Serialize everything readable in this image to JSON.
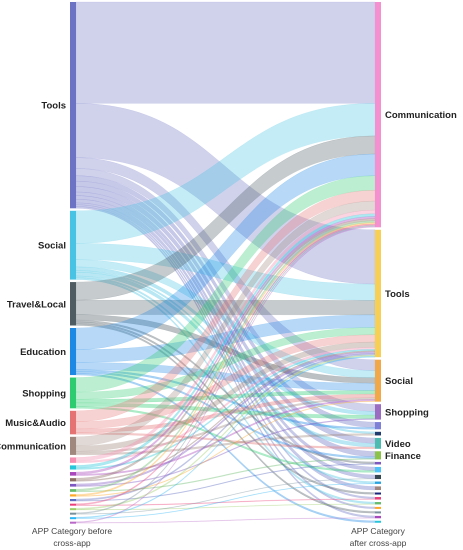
{
  "diagram": {
    "type": "sankey",
    "left_caption_line1": "APP Category before",
    "left_caption_line2": "cross-app",
    "right_caption_line1": "APP Category",
    "right_caption_line2": "after cross-app"
  },
  "left_nodes": [
    {
      "id": "L0",
      "label": "Tools",
      "color": "#6c72c4"
    },
    {
      "id": "L1",
      "label": "Social",
      "color": "#48c3e3"
    },
    {
      "id": "L2",
      "label": "Travel&Local",
      "color": "#4f5d63"
    },
    {
      "id": "L3",
      "label": "Education",
      "color": "#1e88e5"
    },
    {
      "id": "L4",
      "label": "Shopping",
      "color": "#2ecc71"
    },
    {
      "id": "L5",
      "label": "Music&Audio",
      "color": "#e57373"
    },
    {
      "id": "L6",
      "label": "Communication",
      "color": "#a1887f"
    },
    {
      "id": "L7",
      "label": "",
      "color": "#f48fb1"
    },
    {
      "id": "L8",
      "label": "",
      "color": "#26c6da"
    },
    {
      "id": "L9",
      "label": "",
      "color": "#ab47bc"
    },
    {
      "id": "L10",
      "label": "",
      "color": "#8d6e63"
    },
    {
      "id": "L11",
      "label": "",
      "color": "#7e57c2"
    },
    {
      "id": "L12",
      "label": "",
      "color": "#66bb6a"
    },
    {
      "id": "L13",
      "label": "",
      "color": "#ffa726"
    },
    {
      "id": "L14",
      "label": "",
      "color": "#5c6bc0"
    },
    {
      "id": "L15",
      "label": "",
      "color": "#ec407a"
    },
    {
      "id": "L16",
      "label": "",
      "color": "#9ccc65"
    },
    {
      "id": "L17",
      "label": "",
      "color": "#78909c"
    },
    {
      "id": "L18",
      "label": "",
      "color": "#29b6f6"
    },
    {
      "id": "L19",
      "label": "",
      "color": "#ba68c8"
    }
  ],
  "right_nodes": [
    {
      "id": "R0",
      "label": "Communication",
      "color": "#f48fd0"
    },
    {
      "id": "R1",
      "label": "Tools",
      "color": "#f7cf55"
    },
    {
      "id": "R2",
      "label": "Social",
      "color": "#f0a848"
    },
    {
      "id": "R3",
      "label": "Shopping",
      "color": "#9c6cc2"
    },
    {
      "id": "R4",
      "label": "",
      "color": "#7e7fd6"
    },
    {
      "id": "R5",
      "label": "",
      "color": "#1f3a6e"
    },
    {
      "id": "R6",
      "label": "Video",
      "color": "#4dbbb0"
    },
    {
      "id": "R7",
      "label": "Finance",
      "color": "#8bc34a"
    },
    {
      "id": "R8",
      "label": "",
      "color": "#7e57c2"
    },
    {
      "id": "R9",
      "label": "",
      "color": "#4fc3f7"
    },
    {
      "id": "R10",
      "label": "",
      "color": "#37474f"
    },
    {
      "id": "R11",
      "label": "",
      "color": "#29a3e0"
    },
    {
      "id": "R12",
      "label": "",
      "color": "#a1887f"
    },
    {
      "id": "R13",
      "label": "",
      "color": "#1a237e"
    },
    {
      "id": "R14",
      "label": "",
      "color": "#ec407a"
    },
    {
      "id": "R15",
      "label": "",
      "color": "#66bb6a"
    },
    {
      "id": "R16",
      "label": "",
      "color": "#ffa726"
    },
    {
      "id": "R17",
      "label": "",
      "color": "#78909c"
    },
    {
      "id": "R18",
      "label": "",
      "color": "#ab47bc"
    },
    {
      "id": "R19",
      "label": "",
      "color": "#26c6da"
    }
  ],
  "links": [
    {
      "s": 0,
      "t": 0,
      "v": 56
    },
    {
      "s": 0,
      "t": 1,
      "v": 30
    },
    {
      "s": 0,
      "t": 2,
      "v": 6
    },
    {
      "s": 0,
      "t": 3,
      "v": 4
    },
    {
      "s": 0,
      "t": 4,
      "v": 3
    },
    {
      "s": 0,
      "t": 6,
      "v": 3
    },
    {
      "s": 0,
      "t": 7,
      "v": 3
    },
    {
      "s": 0,
      "t": 9,
      "v": 2
    },
    {
      "s": 0,
      "t": 10,
      "v": 2
    },
    {
      "s": 0,
      "t": 12,
      "v": 2
    },
    {
      "s": 0,
      "t": 14,
      "v": 1
    },
    {
      "s": 0,
      "t": 16,
      "v": 1
    },
    {
      "s": 0,
      "t": 18,
      "v": 1
    },
    {
      "s": 1,
      "t": 0,
      "v": 18
    },
    {
      "s": 1,
      "t": 1,
      "v": 9
    },
    {
      "s": 1,
      "t": 2,
      "v": 4
    },
    {
      "s": 1,
      "t": 3,
      "v": 2
    },
    {
      "s": 1,
      "t": 5,
      "v": 1
    },
    {
      "s": 1,
      "t": 6,
      "v": 2
    },
    {
      "s": 1,
      "t": 11,
      "v": 1
    },
    {
      "s": 1,
      "t": 15,
      "v": 1
    },
    {
      "s": 2,
      "t": 0,
      "v": 10
    },
    {
      "s": 2,
      "t": 1,
      "v": 8
    },
    {
      "s": 2,
      "t": 2,
      "v": 3
    },
    {
      "s": 2,
      "t": 8,
      "v": 1
    },
    {
      "s": 2,
      "t": 13,
      "v": 1
    },
    {
      "s": 2,
      "t": 17,
      "v": 1
    },
    {
      "s": 3,
      "t": 0,
      "v": 12
    },
    {
      "s": 3,
      "t": 1,
      "v": 7
    },
    {
      "s": 3,
      "t": 2,
      "v": 4
    },
    {
      "s": 3,
      "t": 4,
      "v": 1
    },
    {
      "s": 3,
      "t": 7,
      "v": 1
    },
    {
      "s": 3,
      "t": 19,
      "v": 1
    },
    {
      "s": 4,
      "t": 0,
      "v": 8
    },
    {
      "s": 4,
      "t": 1,
      "v": 4
    },
    {
      "s": 4,
      "t": 2,
      "v": 2
    },
    {
      "s": 4,
      "t": 3,
      "v": 2
    },
    {
      "s": 4,
      "t": 9,
      "v": 1
    },
    {
      "s": 5,
      "t": 0,
      "v": 6
    },
    {
      "s": 5,
      "t": 1,
      "v": 4
    },
    {
      "s": 5,
      "t": 2,
      "v": 2
    },
    {
      "s": 5,
      "t": 6,
      "v": 1
    },
    {
      "s": 6,
      "t": 0,
      "v": 5
    },
    {
      "s": 6,
      "t": 1,
      "v": 3
    },
    {
      "s": 6,
      "t": 2,
      "v": 1
    },
    {
      "s": 6,
      "t": 5,
      "v": 1
    },
    {
      "s": 7,
      "t": 0,
      "v": 2
    },
    {
      "s": 7,
      "t": 1,
      "v": 1
    },
    {
      "s": 8,
      "t": 0,
      "v": 1.5
    },
    {
      "s": 8,
      "t": 1,
      "v": 0.8
    },
    {
      "s": 9,
      "t": 0,
      "v": 1.2
    },
    {
      "s": 9,
      "t": 2,
      "v": 0.8
    },
    {
      "s": 10,
      "t": 0,
      "v": 1.2
    },
    {
      "s": 10,
      "t": 1,
      "v": 0.6
    },
    {
      "s": 11,
      "t": 1,
      "v": 1
    },
    {
      "s": 11,
      "t": 3,
      "v": 0.5
    },
    {
      "s": 12,
      "t": 0,
      "v": 1
    },
    {
      "s": 12,
      "t": 7,
      "v": 0.5
    },
    {
      "s": 13,
      "t": 0,
      "v": 0.8
    },
    {
      "s": 13,
      "t": 2,
      "v": 0.4
    },
    {
      "s": 14,
      "t": 1,
      "v": 0.8
    },
    {
      "s": 14,
      "t": 8,
      "v": 0.4
    },
    {
      "s": 15,
      "t": 0,
      "v": 0.7
    },
    {
      "s": 15,
      "t": 14,
      "v": 0.4
    },
    {
      "s": 16,
      "t": 1,
      "v": 0.7
    },
    {
      "s": 16,
      "t": 15,
      "v": 0.3
    },
    {
      "s": 17,
      "t": 0,
      "v": 0.6
    },
    {
      "s": 17,
      "t": 10,
      "v": 0.3
    },
    {
      "s": 18,
      "t": 1,
      "v": 0.5
    },
    {
      "s": 18,
      "t": 11,
      "v": 0.3
    },
    {
      "s": 19,
      "t": 0,
      "v": 0.5
    },
    {
      "s": 19,
      "t": 18,
      "v": 0.3
    }
  ]
}
